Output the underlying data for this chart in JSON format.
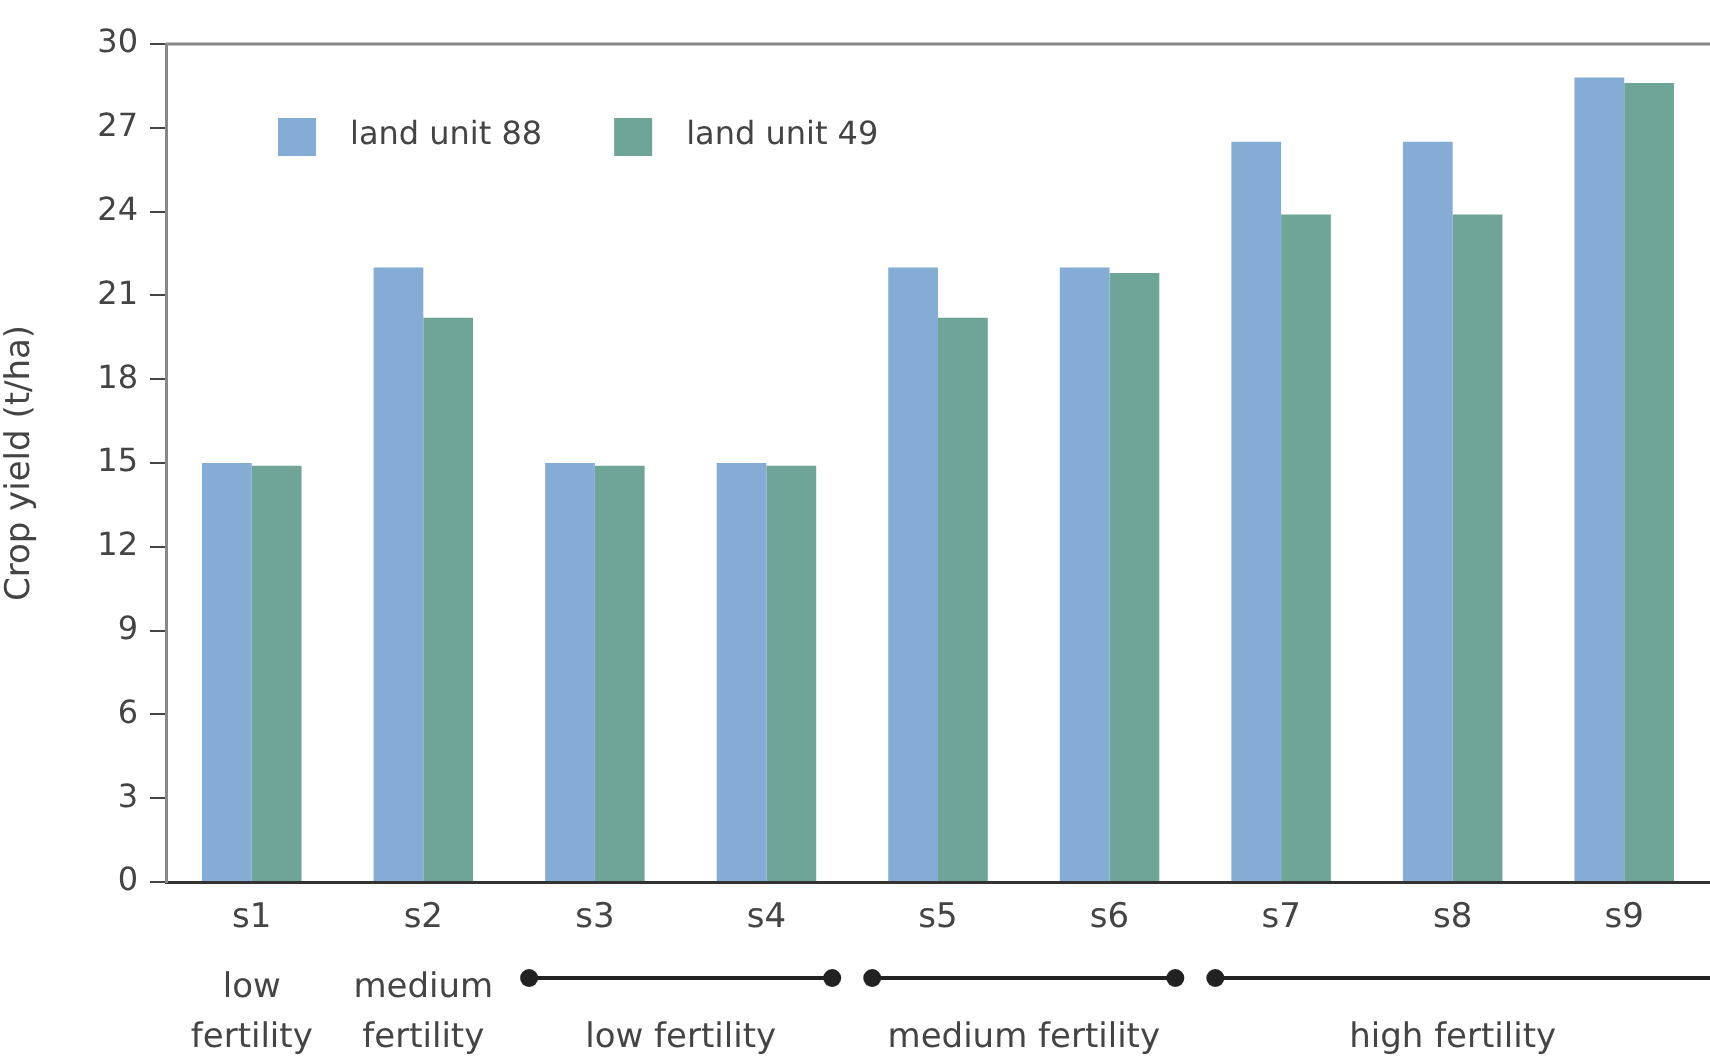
{
  "chart_data": {
    "type": "bar",
    "ylabel": "Crop yield (t/ha)",
    "categories": [
      "s1",
      "s2",
      "s3",
      "s4",
      "s5",
      "s6",
      "s7",
      "s8",
      "s9"
    ],
    "series": [
      {
        "name": "land unit 88",
        "color": "#84acd4",
        "values": [
          15,
          22,
          15,
          15,
          22,
          22,
          26.5,
          26.5,
          28.8
        ]
      },
      {
        "name": "land unit 49",
        "color": "#6ea596",
        "values": [
          14.9,
          20.2,
          14.9,
          14.9,
          20.2,
          21.8,
          23.9,
          23.9,
          28.6
        ]
      }
    ],
    "ylim": [
      0,
      30
    ],
    "yticks": [
      0,
      3,
      6,
      9,
      12,
      15,
      18,
      21,
      24,
      27,
      30
    ],
    "annotations": [
      "low fertility",
      "medium fertility",
      "low fertility",
      "medium fertility",
      "high fertility"
    ],
    "legend": "top left",
    "grid": false
  }
}
